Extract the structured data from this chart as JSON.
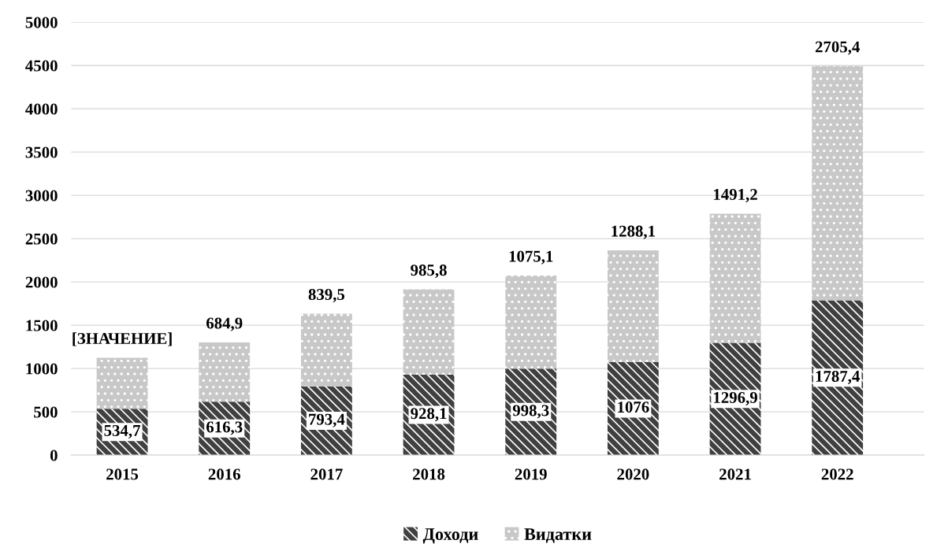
{
  "chart_data": {
    "type": "bar",
    "stacked": true,
    "categories": [
      "2015",
      "2016",
      "2017",
      "2018",
      "2019",
      "2020",
      "2021",
      "2022"
    ],
    "series": [
      {
        "name": "Доходи",
        "color": "#404040",
        "values": [
          534.7,
          616.3,
          793.4,
          928.1,
          998.3,
          1076,
          1296.9,
          1787.4
        ],
        "value_labels": [
          "534,7",
          "616,3",
          "793,4",
          "928,1",
          "998,3",
          "1076",
          "1296,9",
          "1787,4"
        ]
      },
      {
        "name": "Видатки",
        "color": "#c8c8c8",
        "values": [
          590,
          684.9,
          839.5,
          985.8,
          1075.1,
          1288.1,
          1491.2,
          2705.4
        ],
        "value_labels": [
          "[ЗНАЧЕНИЕ]",
          "684,9",
          "839,5",
          "985,8",
          "1075,1",
          "1288,1",
          "1491,2",
          "2705,4"
        ]
      }
    ],
    "ylim": [
      0,
      5000
    ],
    "yticks": [
      0,
      500,
      1000,
      1500,
      2000,
      2500,
      3000,
      3500,
      4000,
      4500,
      5000
    ],
    "grid": "y",
    "legend": "bottom"
  }
}
